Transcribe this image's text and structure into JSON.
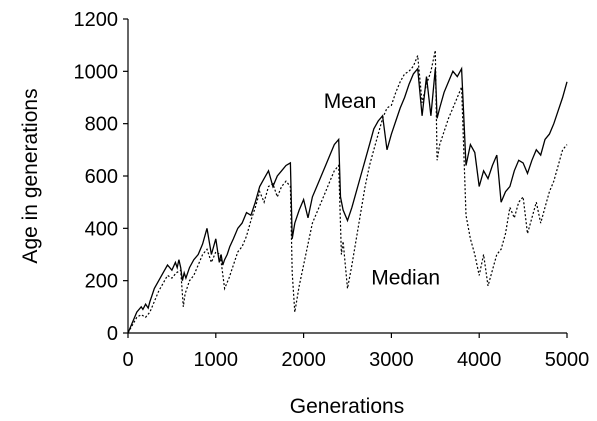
{
  "chart_data": {
    "type": "line",
    "title": "",
    "xlabel": "Generations",
    "ylabel": "Age in generations",
    "xlim": [
      0,
      5000
    ],
    "ylim": [
      0,
      1200
    ],
    "xticks": [
      0,
      1000,
      2000,
      3000,
      4000,
      5000
    ],
    "yticks": [
      0,
      200,
      400,
      600,
      800,
      1000,
      1200
    ],
    "grid": false,
    "legend": "none",
    "annotations": [
      {
        "text": "Mean",
        "x": 2230,
        "y": 860
      },
      {
        "text": "Median",
        "x": 2770,
        "y": 185
      }
    ],
    "series": [
      {
        "style": "solid",
        "color": "#000000",
        "x": [
          0,
          50,
          100,
          150,
          170,
          200,
          230,
          250,
          270,
          300,
          350,
          400,
          450,
          500,
          540,
          560,
          580,
          600,
          620,
          640,
          660,
          700,
          750,
          800,
          850,
          900,
          950,
          1000,
          1040,
          1060,
          1080,
          1100,
          1130,
          1160,
          1200,
          1250,
          1300,
          1350,
          1400,
          1450,
          1500,
          1550,
          1600,
          1650,
          1700,
          1750,
          1800,
          1850,
          1870,
          1900,
          1950,
          2000,
          2050,
          2100,
          2150,
          2200,
          2250,
          2300,
          2350,
          2400,
          2420,
          2450,
          2500,
          2550,
          2600,
          2650,
          2700,
          2750,
          2800,
          2850,
          2900,
          2950,
          3000,
          3050,
          3100,
          3150,
          3200,
          3250,
          3300,
          3350,
          3400,
          3450,
          3500,
          3520,
          3550,
          3600,
          3650,
          3700,
          3750,
          3800,
          3850,
          3900,
          3950,
          4000,
          4050,
          4100,
          4150,
          4200,
          4250,
          4300,
          4350,
          4400,
          4450,
          4500,
          4550,
          4600,
          4650,
          4700,
          4750,
          4800,
          4850,
          4900,
          4950,
          5000
        ],
        "y": [
          0,
          40,
          80,
          100,
          90,
          110,
          95,
          120,
          140,
          170,
          200,
          230,
          260,
          240,
          270,
          250,
          280,
          250,
          200,
          230,
          210,
          250,
          280,
          300,
          340,
          400,
          300,
          360,
          270,
          300,
          260,
          280,
          300,
          330,
          360,
          400,
          420,
          460,
          450,
          500,
          560,
          590,
          620,
          560,
          600,
          620,
          640,
          650,
          360,
          420,
          470,
          510,
          440,
          520,
          560,
          600,
          640,
          680,
          720,
          740,
          520,
          470,
          430,
          480,
          540,
          600,
          660,
          720,
          780,
          810,
          830,
          700,
          760,
          810,
          860,
          900,
          950,
          990,
          1010,
          830,
          980,
          830,
          1010,
          820,
          860,
          920,
          960,
          1000,
          980,
          1010,
          640,
          720,
          690,
          560,
          620,
          590,
          640,
          680,
          500,
          540,
          560,
          620,
          660,
          650,
          610,
          660,
          700,
          680,
          740,
          760,
          800,
          850,
          900,
          960
        ]
      },
      {
        "style": "dotted",
        "color": "#000000",
        "x": [
          0,
          50,
          100,
          150,
          200,
          250,
          300,
          350,
          400,
          450,
          500,
          550,
          600,
          630,
          650,
          700,
          750,
          800,
          850,
          900,
          950,
          1000,
          1050,
          1100,
          1150,
          1200,
          1250,
          1300,
          1350,
          1400,
          1450,
          1500,
          1550,
          1600,
          1650,
          1700,
          1750,
          1800,
          1850,
          1870,
          1900,
          1950,
          2000,
          2050,
          2100,
          2150,
          2200,
          2250,
          2300,
          2350,
          2400,
          2430,
          2450,
          2500,
          2550,
          2600,
          2650,
          2700,
          2750,
          2800,
          2850,
          2900,
          2950,
          3000,
          3050,
          3100,
          3150,
          3200,
          3250,
          3300,
          3350,
          3400,
          3450,
          3500,
          3520,
          3550,
          3600,
          3650,
          3700,
          3750,
          3800,
          3850,
          3900,
          3950,
          4000,
          4050,
          4100,
          4150,
          4200,
          4250,
          4300,
          4350,
          4400,
          4450,
          4500,
          4550,
          4600,
          4650,
          4700,
          4750,
          4800,
          4850,
          4900,
          4950,
          5000
        ],
        "y": [
          0,
          30,
          60,
          70,
          60,
          80,
          120,
          160,
          190,
          220,
          210,
          230,
          240,
          100,
          150,
          200,
          220,
          260,
          300,
          320,
          270,
          310,
          300,
          170,
          210,
          260,
          310,
          330,
          370,
          430,
          480,
          540,
          500,
          560,
          570,
          520,
          560,
          580,
          560,
          230,
          80,
          180,
          260,
          340,
          420,
          460,
          500,
          540,
          580,
          620,
          640,
          300,
          350,
          170,
          260,
          360,
          460,
          560,
          640,
          700,
          760,
          820,
          860,
          870,
          920,
          960,
          990,
          1000,
          1020,
          1060,
          880,
          950,
          1000,
          1080,
          660,
          720,
          770,
          820,
          860,
          900,
          940,
          450,
          360,
          300,
          220,
          300,
          180,
          240,
          300,
          320,
          380,
          480,
          440,
          500,
          520,
          380,
          440,
          500,
          420,
          480,
          540,
          580,
          640,
          700,
          720
        ]
      }
    ]
  }
}
